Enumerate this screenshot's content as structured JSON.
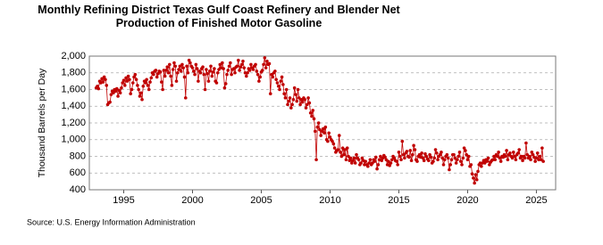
{
  "chart_data": {
    "type": "line",
    "title": "Monthly Refining District Texas Gulf Coast Refinery and Blender Net Production of Finished Motor Gasoline",
    "ylabel": "Thousand Barrels per Day",
    "source": "Source: U.S. Energy Information Administration",
    "xlim": [
      1992.5,
      2026.4
    ],
    "xticks": [
      1995,
      2000,
      2005,
      2010,
      2015,
      2020,
      2025
    ],
    "ylim": [
      400,
      2000
    ],
    "yticks": [
      {
        "value": 400,
        "label": "400"
      },
      {
        "value": 600,
        "label": "600"
      },
      {
        "value": 800,
        "label": "800"
      },
      {
        "value": 1000,
        "label": "1,000"
      },
      {
        "value": 1200,
        "label": "1,200"
      },
      {
        "value": 1400,
        "label": "1,400"
      },
      {
        "value": 1600,
        "label": "1,600"
      },
      {
        "value": 1800,
        "label": "1,800"
      },
      {
        "value": 2000,
        "label": "2,000"
      }
    ],
    "grid": true,
    "x": [
      1993,
      1993.083,
      1993.167,
      1993.25,
      1993.333,
      1993.417,
      1993.5,
      1993.583,
      1993.667,
      1993.75,
      1993.833,
      1993.917,
      1994,
      1994.083,
      1994.167,
      1994.25,
      1994.333,
      1994.417,
      1994.5,
      1994.583,
      1994.667,
      1994.75,
      1994.833,
      1994.917,
      1995,
      1995.083,
      1995.167,
      1995.25,
      1995.333,
      1995.417,
      1995.5,
      1995.583,
      1995.667,
      1995.75,
      1995.833,
      1995.917,
      1996,
      1996.083,
      1996.167,
      1996.25,
      1996.333,
      1996.417,
      1996.5,
      1996.583,
      1996.667,
      1996.75,
      1996.833,
      1996.917,
      1997,
      1997.083,
      1997.167,
      1997.25,
      1997.333,
      1997.417,
      1997.5,
      1997.583,
      1997.667,
      1997.75,
      1997.833,
      1997.917,
      1998,
      1998.083,
      1998.167,
      1998.25,
      1998.333,
      1998.417,
      1998.5,
      1998.583,
      1998.667,
      1998.75,
      1998.833,
      1998.917,
      1999,
      1999.083,
      1999.167,
      1999.25,
      1999.333,
      1999.417,
      1999.5,
      1999.583,
      1999.667,
      1999.75,
      1999.833,
      1999.917,
      2000,
      2000.083,
      2000.167,
      2000.25,
      2000.333,
      2000.417,
      2000.5,
      2000.583,
      2000.667,
      2000.75,
      2000.833,
      2000.917,
      2001,
      2001.083,
      2001.167,
      2001.25,
      2001.333,
      2001.417,
      2001.5,
      2001.583,
      2001.667,
      2001.75,
      2001.833,
      2001.917,
      2002,
      2002.083,
      2002.167,
      2002.25,
      2002.333,
      2002.417,
      2002.5,
      2002.583,
      2002.667,
      2002.75,
      2002.833,
      2002.917,
      2003,
      2003.083,
      2003.167,
      2003.25,
      2003.333,
      2003.417,
      2003.5,
      2003.583,
      2003.667,
      2003.75,
      2003.833,
      2003.917,
      2004,
      2004.083,
      2004.167,
      2004.25,
      2004.333,
      2004.417,
      2004.5,
      2004.583,
      2004.667,
      2004.75,
      2004.833,
      2004.917,
      2005,
      2005.083,
      2005.167,
      2005.25,
      2005.333,
      2005.417,
      2005.5,
      2005.583,
      2005.667,
      2005.75,
      2005.833,
      2005.917,
      2006,
      2006.083,
      2006.167,
      2006.25,
      2006.333,
      2006.417,
      2006.5,
      2006.583,
      2006.667,
      2006.75,
      2006.833,
      2006.917,
      2007,
      2007.083,
      2007.167,
      2007.25,
      2007.333,
      2007.417,
      2007.5,
      2007.583,
      2007.667,
      2007.75,
      2007.833,
      2007.917,
      2008,
      2008.083,
      2008.167,
      2008.25,
      2008.333,
      2008.417,
      2008.5,
      2008.583,
      2008.667,
      2008.75,
      2008.833,
      2008.917,
      2009,
      2009.083,
      2009.167,
      2009.25,
      2009.333,
      2009.417,
      2009.5,
      2009.583,
      2009.667,
      2009.75,
      2009.833,
      2009.917,
      2010,
      2010.083,
      2010.167,
      2010.25,
      2010.333,
      2010.417,
      2010.5,
      2010.583,
      2010.667,
      2010.75,
      2010.833,
      2010.917,
      2011,
      2011.083,
      2011.167,
      2011.25,
      2011.333,
      2011.417,
      2011.5,
      2011.583,
      2011.667,
      2011.75,
      2011.833,
      2011.917,
      2012,
      2012.083,
      2012.167,
      2012.25,
      2012.333,
      2012.417,
      2012.5,
      2012.583,
      2012.667,
      2012.75,
      2012.833,
      2012.917,
      2013,
      2013.083,
      2013.167,
      2013.25,
      2013.333,
      2013.417,
      2013.5,
      2013.583,
      2013.667,
      2013.75,
      2013.833,
      2013.917,
      2014,
      2014.083,
      2014.167,
      2014.25,
      2014.333,
      2014.417,
      2014.5,
      2014.583,
      2014.667,
      2014.75,
      2014.833,
      2014.917,
      2015,
      2015.083,
      2015.167,
      2015.25,
      2015.333,
      2015.417,
      2015.5,
      2015.583,
      2015.667,
      2015.75,
      2015.833,
      2015.917,
      2016,
      2016.083,
      2016.167,
      2016.25,
      2016.333,
      2016.417,
      2016.5,
      2016.583,
      2016.667,
      2016.75,
      2016.833,
      2016.917,
      2017,
      2017.083,
      2017.167,
      2017.25,
      2017.333,
      2017.417,
      2017.5,
      2017.583,
      2017.667,
      2017.75,
      2017.833,
      2017.917,
      2018,
      2018.083,
      2018.167,
      2018.25,
      2018.333,
      2018.417,
      2018.5,
      2018.583,
      2018.667,
      2018.75,
      2018.833,
      2018.917,
      2019,
      2019.083,
      2019.167,
      2019.25,
      2019.333,
      2019.417,
      2019.5,
      2019.583,
      2019.667,
      2019.75,
      2019.833,
      2019.917,
      2020,
      2020.083,
      2020.167,
      2020.25,
      2020.333,
      2020.417,
      2020.5,
      2020.583,
      2020.667,
      2020.75,
      2020.833,
      2020.917,
      2021,
      2021.083,
      2021.167,
      2021.25,
      2021.333,
      2021.417,
      2021.5,
      2021.583,
      2021.667,
      2021.75,
      2021.833,
      2021.917,
      2022,
      2022.083,
      2022.167,
      2022.25,
      2022.333,
      2022.417,
      2022.5,
      2022.583,
      2022.667,
      2022.75,
      2022.833,
      2022.917,
      2023,
      2023.083,
      2023.167,
      2023.25,
      2023.333,
      2023.417,
      2023.5,
      2023.583,
      2023.667,
      2023.75,
      2023.833,
      2023.917,
      2024,
      2024.083,
      2024.167,
      2024.25,
      2024.333,
      2024.417,
      2024.5,
      2024.583,
      2024.667,
      2024.75,
      2024.833,
      2024.917,
      2025,
      2025.083,
      2025.167,
      2025.25,
      2025.333,
      2025.417,
      2025.5
    ],
    "series": [
      {
        "color": "#c00000",
        "values": [
          1620,
          1640,
          1610,
          1700,
          1680,
          1730,
          1690,
          1750,
          1720,
          1650,
          1420,
          1440,
          1450,
          1540,
          1580,
          1560,
          1600,
          1580,
          1610,
          1520,
          1590,
          1560,
          1620,
          1680,
          1710,
          1650,
          1740,
          1700,
          1760,
          1720,
          1550,
          1600,
          1680,
          1750,
          1780,
          1720,
          1650,
          1600,
          1520,
          1560,
          1480,
          1640,
          1700,
          1680,
          1720,
          1650,
          1600,
          1690,
          1740,
          1800,
          1780,
          1820,
          1830,
          1750,
          1790,
          1820,
          1810,
          1690,
          1600,
          1830,
          1760,
          1830,
          1870,
          1800,
          1900,
          1760,
          1650,
          1840,
          1920,
          1880,
          1700,
          1800,
          1840,
          1880,
          1820,
          1900,
          1860,
          1750,
          1500,
          1880,
          1800,
          1950,
          1920,
          1880,
          1860,
          1820,
          1780,
          1900,
          1850,
          1700,
          1820,
          1800,
          1850,
          1870,
          1780,
          1600,
          1840,
          1790,
          1700,
          1820,
          1880,
          1760,
          1810,
          1850,
          1700,
          1680,
          1800,
          1840,
          1900,
          1860,
          1920,
          1850,
          1620,
          1670,
          1780,
          1830,
          1880,
          1920,
          1780,
          1840,
          1850,
          1800,
          1870,
          1880,
          1950,
          1830,
          1870,
          1900,
          1940,
          1860,
          1800,
          1760,
          1800,
          1850,
          1830,
          1900,
          1860,
          1840,
          1880,
          1900,
          1820,
          1780,
          1700,
          1750,
          1810,
          1830,
          1900,
          1980,
          1860,
          1940,
          1900,
          1910,
          1550,
          1780,
          1750,
          1800,
          1820,
          1720,
          1680,
          1640,
          1600,
          1700,
          1750,
          1660,
          1550,
          1500,
          1600,
          1420,
          1460,
          1500,
          1380,
          1420,
          1480,
          1620,
          1540,
          1460,
          1600,
          1500,
          1420,
          1480,
          1450,
          1500,
          1480,
          1380,
          1420,
          1500,
          1440,
          1320,
          1280,
          1350,
          1250,
          1100,
          760,
          1150,
          1200,
          1120,
          1050,
          1100,
          1130,
          1080,
          1150,
          1000,
          980,
          1080,
          1030,
          1000,
          980,
          950,
          900,
          850,
          870,
          880,
          1050,
          850,
          800,
          900,
          820,
          880,
          760,
          900,
          800,
          750,
          780,
          720,
          750,
          780,
          720,
          820,
          780,
          760,
          700,
          720,
          780,
          750,
          700,
          740,
          700,
          680,
          720,
          760,
          700,
          720,
          760,
          740,
          790,
          650,
          700,
          760,
          800,
          750,
          780,
          810,
          790,
          760,
          700,
          740,
          690,
          720,
          760,
          800,
          780,
          750,
          740,
          700,
          850,
          800,
          760,
          980,
          820,
          780,
          840,
          860,
          800,
          790,
          870,
          750,
          820,
          930,
          880,
          760,
          740,
          800,
          820,
          790,
          840,
          780,
          750,
          830,
          800,
          770,
          750,
          820,
          790,
          720,
          740,
          780,
          880,
          840,
          760,
          800,
          820,
          850,
          780,
          700,
          760,
          800,
          820,
          780,
          640,
          700,
          760,
          820,
          820,
          780,
          720,
          760,
          800,
          850,
          740,
          700,
          780,
          900,
          870,
          820,
          760,
          800,
          680,
          700,
          590,
          540,
          480,
          580,
          520,
          620,
          700,
          720,
          680,
          720,
          750,
          720,
          760,
          740,
          780,
          700,
          730,
          750,
          760,
          800,
          760,
          820,
          800,
          850,
          780,
          740,
          800,
          790,
          820,
          800,
          870,
          760,
          820,
          840,
          800,
          780,
          850,
          800,
          760,
          820,
          840,
          880,
          780,
          800,
          750,
          800,
          780,
          960,
          820,
          780,
          800,
          760,
          850,
          820,
          790,
          740,
          780,
          840,
          760,
          800,
          760,
          900,
          740
        ]
      }
    ]
  }
}
